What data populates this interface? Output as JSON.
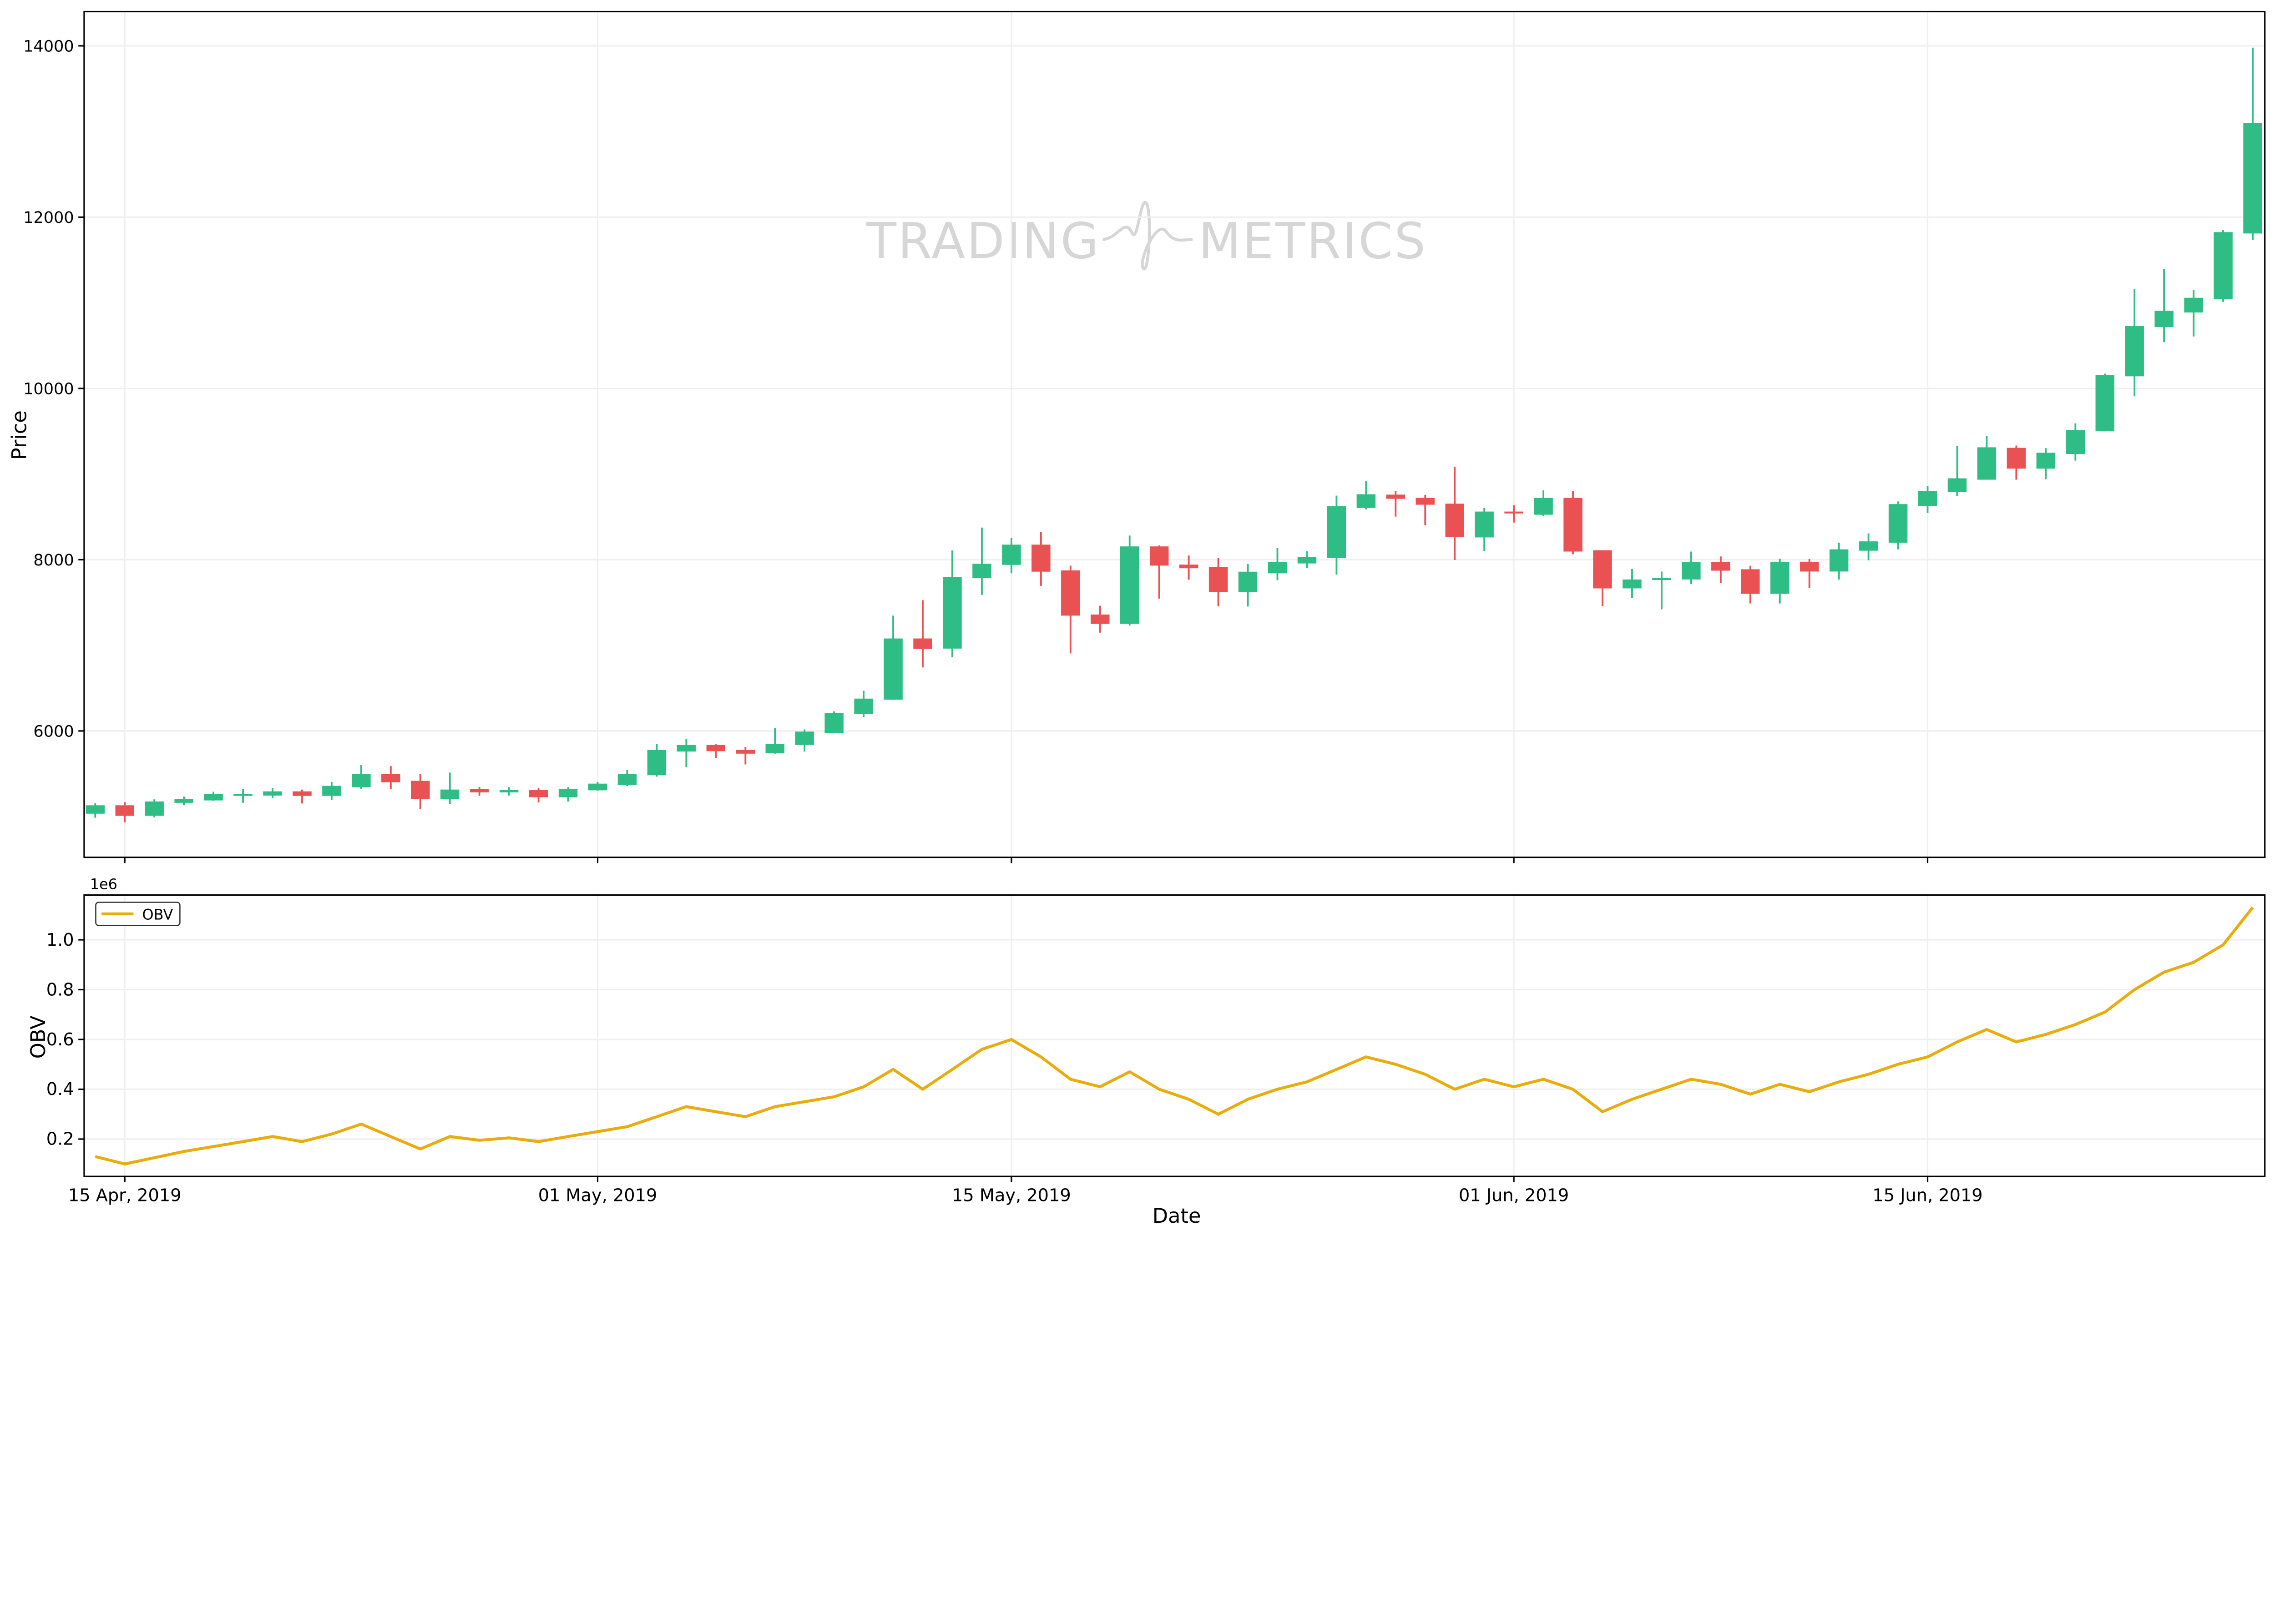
{
  "watermark": {
    "text_left": "TRADING",
    "text_right": "METRICS"
  },
  "colors": {
    "up": "#2ebd85",
    "down": "#ea5153",
    "obv_line": "#e8ad0c",
    "grid": "#efefef",
    "watermark": "#d6d6d6"
  },
  "chart_data": [
    {
      "type": "candlestick",
      "ylabel": "Price",
      "yticks": [
        6000,
        8000,
        10000,
        12000,
        14000
      ],
      "ylim": [
        4525,
        14400
      ],
      "grid": true,
      "columns": [
        "date",
        "open",
        "high",
        "low",
        "close"
      ],
      "rows": [
        [
          "2019-04-14",
          5034,
          5157,
          4987,
          5132
        ],
        [
          "2019-04-15",
          5132,
          5169,
          4933,
          5010
        ],
        [
          "2019-04-16",
          5010,
          5202,
          4990,
          5177
        ],
        [
          "2019-04-17",
          5161,
          5234,
          5132,
          5206
        ],
        [
          "2019-04-18",
          5189,
          5291,
          5185,
          5263
        ],
        [
          "2019-04-19",
          5246,
          5324,
          5161,
          5263
        ],
        [
          "2019-04-20",
          5246,
          5336,
          5218,
          5295
        ],
        [
          "2019-04-21",
          5295,
          5316,
          5153,
          5242
        ],
        [
          "2019-04-22",
          5242,
          5405,
          5193,
          5360
        ],
        [
          "2019-04-23",
          5344,
          5605,
          5320,
          5499
        ],
        [
          "2019-04-24",
          5495,
          5589,
          5320,
          5401
        ],
        [
          "2019-04-25",
          5418,
          5495,
          5088,
          5206
        ],
        [
          "2019-04-26",
          5206,
          5515,
          5149,
          5316
        ],
        [
          "2019-04-27",
          5320,
          5344,
          5242,
          5283
        ],
        [
          "2019-04-28",
          5283,
          5344,
          5246,
          5312
        ],
        [
          "2019-04-29",
          5312,
          5336,
          5165,
          5226
        ],
        [
          "2019-04-30",
          5226,
          5344,
          5177,
          5324
        ],
        [
          "2019-05-01",
          5307,
          5405,
          5303,
          5385
        ],
        [
          "2019-05-02",
          5369,
          5544,
          5356,
          5495
        ],
        [
          "2019-05-03",
          5483,
          5849,
          5466,
          5780
        ],
        [
          "2019-05-04",
          5760,
          5906,
          5576,
          5837
        ],
        [
          "2019-05-05",
          5837,
          5845,
          5686,
          5764
        ],
        [
          "2019-05-06",
          5780,
          5813,
          5609,
          5735
        ],
        [
          "2019-05-07",
          5741,
          6033,
          5735,
          5850
        ],
        [
          "2019-05-08",
          5838,
          6018,
          5760,
          5993
        ],
        [
          "2019-05-09",
          5974,
          6229,
          5974,
          6210
        ],
        [
          "2019-05-10",
          6198,
          6471,
          6161,
          6378
        ],
        [
          "2019-05-11",
          6366,
          7347,
          6366,
          7080
        ],
        [
          "2019-05-12",
          7080,
          7527,
          6742,
          6959
        ],
        [
          "2019-05-13",
          6962,
          8108,
          6860,
          7798
        ],
        [
          "2019-05-14",
          7788,
          8375,
          7589,
          7953
        ],
        [
          "2019-05-15",
          7940,
          8257,
          7841,
          8176
        ],
        [
          "2019-05-16",
          8176,
          8326,
          7695,
          7860
        ],
        [
          "2019-05-17",
          7875,
          7931,
          6906,
          7347
        ],
        [
          "2019-05-18",
          7360,
          7462,
          7148,
          7251
        ],
        [
          "2019-05-19",
          7251,
          8282,
          7232,
          8155
        ],
        [
          "2019-05-20",
          8155,
          8167,
          7546,
          7931
        ],
        [
          "2019-05-21",
          7943,
          8049,
          7766,
          7900
        ],
        [
          "2019-05-22",
          7912,
          8021,
          7456,
          7624
        ],
        [
          "2019-05-23",
          7620,
          7950,
          7453,
          7860
        ],
        [
          "2019-05-24",
          7841,
          8136,
          7760,
          7975
        ],
        [
          "2019-05-25",
          7956,
          8099,
          7903,
          8034
        ],
        [
          "2019-05-26",
          8018,
          8748,
          7826,
          8624
        ],
        [
          "2019-05-27",
          8605,
          8916,
          8586,
          8764
        ],
        [
          "2019-05-28",
          8760,
          8804,
          8503,
          8711
        ],
        [
          "2019-05-29",
          8723,
          8757,
          8403,
          8642
        ],
        [
          "2019-05-30",
          8655,
          9080,
          7996,
          8263
        ],
        [
          "2019-05-31",
          8260,
          8602,
          8102,
          8562
        ],
        [
          "2019-06-01",
          8562,
          8636,
          8434,
          8540
        ],
        [
          "2019-06-02",
          8525,
          8810,
          8509,
          8722
        ],
        [
          "2019-06-03",
          8722,
          8799,
          8064,
          8095
        ],
        [
          "2019-06-04",
          8110,
          8110,
          7458,
          7665
        ],
        [
          "2019-06-05",
          7665,
          7893,
          7551,
          7769
        ],
        [
          "2019-06-06",
          7763,
          7862,
          7421,
          7784
        ],
        [
          "2019-06-07",
          7769,
          8095,
          7717,
          7971
        ],
        [
          "2019-06-08",
          7971,
          8038,
          7727,
          7872
        ],
        [
          "2019-06-09",
          7888,
          7929,
          7489,
          7603
        ],
        [
          "2019-06-10",
          7603,
          8012,
          7489,
          7976
        ],
        [
          "2019-06-11",
          7976,
          8007,
          7670,
          7862
        ],
        [
          "2019-06-12",
          7862,
          8199,
          7768,
          8121
        ],
        [
          "2019-06-13",
          8105,
          8307,
          7991,
          8214
        ],
        [
          "2019-06-14",
          8199,
          8680,
          8121,
          8649
        ],
        [
          "2019-06-15",
          8629,
          8861,
          8546,
          8804
        ],
        [
          "2019-06-16",
          8789,
          9328,
          8742,
          8950
        ],
        [
          "2019-06-17",
          8934,
          9442,
          8934,
          9312
        ],
        [
          "2019-06-18",
          9307,
          9333,
          8934,
          9064
        ],
        [
          "2019-06-19",
          9064,
          9302,
          8939,
          9250
        ],
        [
          "2019-06-20",
          9234,
          9592,
          9157,
          9514
        ],
        [
          "2019-06-21",
          9499,
          10172,
          9499,
          10157
        ],
        [
          "2019-06-22",
          10141,
          11161,
          9908,
          10732
        ],
        [
          "2019-06-23",
          10716,
          11395,
          10540,
          10908
        ],
        [
          "2019-06-24",
          10887,
          11146,
          10607,
          11058
        ],
        [
          "2019-06-25",
          11042,
          11851,
          11011,
          11825
        ],
        [
          "2019-06-26",
          11809,
          13979,
          11731,
          13099
        ]
      ]
    },
    {
      "type": "line",
      "xlabel": "Date",
      "ylabel": "OBV",
      "y_offset_label": "1e6",
      "yticks": [
        "0.2",
        "0.4",
        "0.6",
        "0.8",
        "1.0"
      ],
      "ylim": [
        0.05,
        1.18
      ],
      "grid": true,
      "legend": {
        "position": "top-left",
        "entries": [
          "OBV"
        ]
      },
      "xticks": [
        {
          "date": "2019-04-15",
          "label": "15 Apr, 2019"
        },
        {
          "date": "2019-05-01",
          "label": "01 May, 2019"
        },
        {
          "date": "2019-05-15",
          "label": "15 May, 2019"
        },
        {
          "date": "2019-06-01",
          "label": "01 Jun, 2019"
        },
        {
          "date": "2019-06-15",
          "label": "15 Jun, 2019"
        }
      ],
      "series": [
        {
          "name": "OBV",
          "values": [
            0.13,
            0.1,
            0.125,
            0.15,
            0.17,
            0.19,
            0.21,
            0.19,
            0.22,
            0.26,
            0.21,
            0.16,
            0.21,
            0.195,
            0.205,
            0.19,
            0.21,
            0.23,
            0.25,
            0.29,
            0.33,
            0.31,
            0.29,
            0.33,
            0.35,
            0.37,
            0.41,
            0.48,
            0.4,
            0.48,
            0.56,
            0.6,
            0.53,
            0.44,
            0.41,
            0.47,
            0.4,
            0.36,
            0.3,
            0.36,
            0.4,
            0.43,
            0.48,
            0.53,
            0.5,
            0.46,
            0.4,
            0.44,
            0.41,
            0.44,
            0.4,
            0.31,
            0.36,
            0.4,
            0.44,
            0.42,
            0.38,
            0.42,
            0.39,
            0.43,
            0.46,
            0.5,
            0.53,
            0.59,
            0.64,
            0.59,
            0.62,
            0.66,
            0.71,
            0.8,
            0.87,
            0.91,
            0.98,
            1.13
          ]
        }
      ]
    }
  ]
}
